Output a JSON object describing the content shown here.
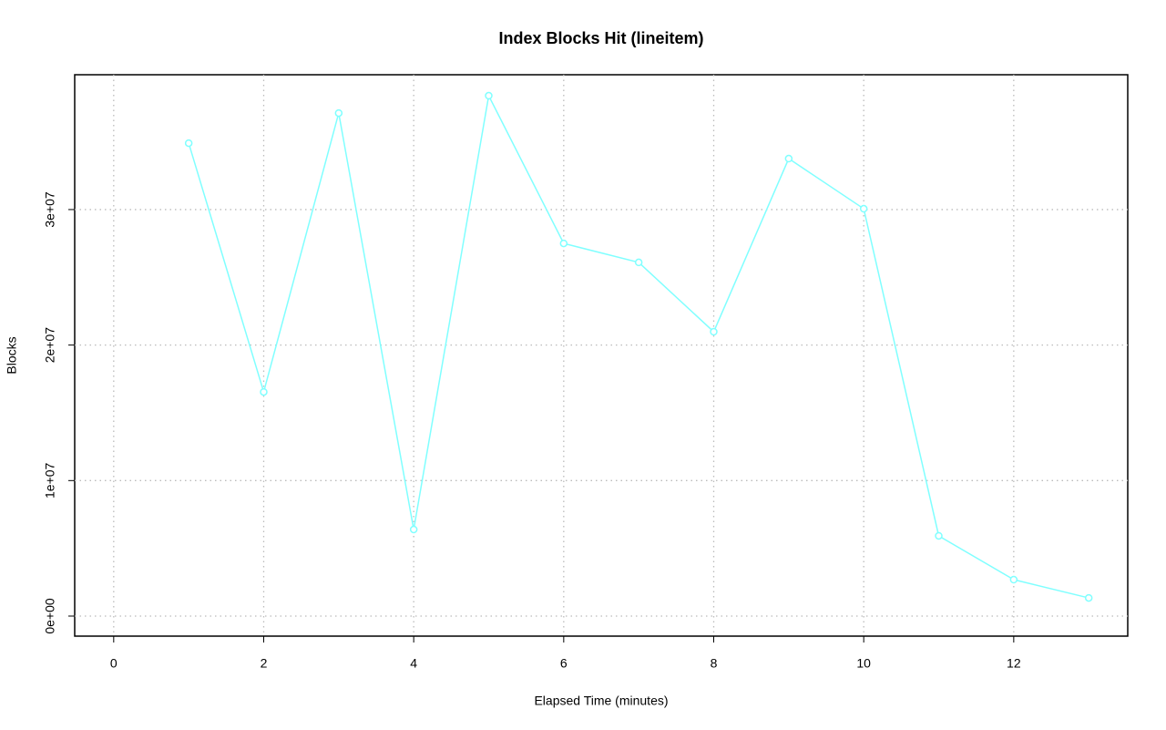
{
  "chart_data": {
    "type": "line",
    "title": "Index Blocks Hit (lineitem)",
    "x_label": "Elapsed Time (minutes)",
    "y_label": "Blocks",
    "x": [
      1,
      2,
      3,
      4,
      5,
      6,
      7,
      8,
      9,
      10,
      11,
      12,
      13
    ],
    "series": [
      {
        "color": "#80ffff",
        "values": [
          34900000,
          16540000,
          37120000,
          6390000,
          38400000,
          27500000,
          26100000,
          20980000,
          33760000,
          30060000,
          5920000,
          2690000,
          1340000
        ]
      }
    ],
    "xlim": [
      -0.52,
      13.52
    ],
    "xticks": [
      0,
      2,
      4,
      6,
      8,
      10,
      12
    ],
    "ylim": [
      -1480000,
      39950000
    ],
    "yticks": [
      {
        "value": 0,
        "label": "0e+00"
      },
      {
        "value": 10000000,
        "label": "1e+07"
      },
      {
        "value": 20000000,
        "label": "2e+07"
      },
      {
        "value": 30000000,
        "label": "3e+07"
      }
    ],
    "grid": true
  }
}
